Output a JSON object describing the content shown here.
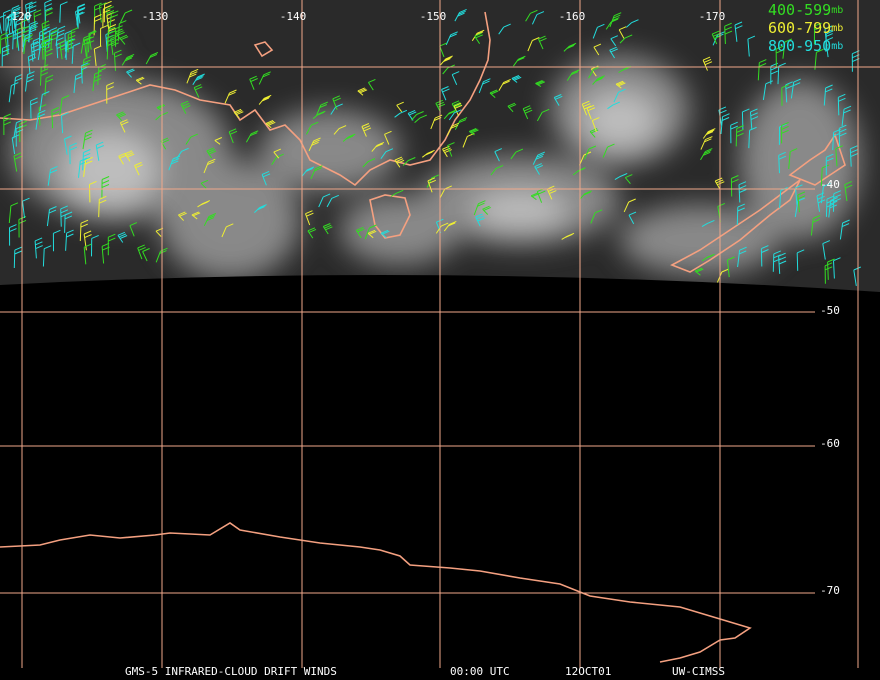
{
  "map": {
    "longitude_labels": [
      "-120",
      "-130",
      "-140",
      "-150",
      "-160",
      "-170"
    ],
    "latitude_labels": [
      "-40",
      "-50",
      "-60",
      "-70"
    ],
    "legend": [
      {
        "range": "400-599",
        "unit": "mb",
        "color": "#33dd22"
      },
      {
        "range": "600-799",
        "unit": "mb",
        "color": "#eeee33"
      },
      {
        "range": "800-950",
        "unit": "mb",
        "color": "#22dddd"
      }
    ],
    "footer": {
      "product": "GMS-5 INFRARED-CLOUD DRIFT WINDS",
      "time": "00:00 UTC",
      "date": "12OCT01",
      "source": "UW-CIMSS"
    }
  }
}
